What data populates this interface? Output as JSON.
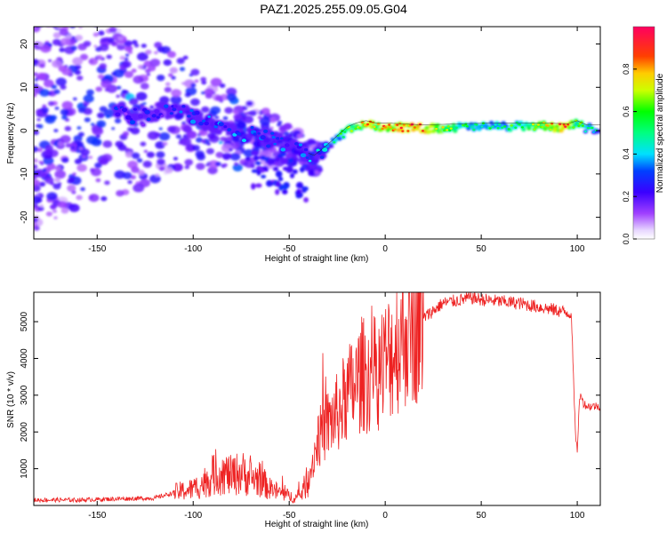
{
  "title": "PAZ1.2025.255.09.05.G04",
  "colors": {
    "snr_line": "#ee2222",
    "axis": "#000000",
    "grid": "#000000"
  },
  "chart_data": [
    {
      "type": "heatmap",
      "name": "spectrogram",
      "xlabel": "Height of straight line (km)",
      "ylabel": "Frequency (Hz)",
      "xlim": [
        -183,
        112
      ],
      "ylim": [
        -25,
        24
      ],
      "xticks": [
        -150,
        -100,
        -50,
        0,
        50,
        100
      ],
      "yticks": [
        -20,
        -10,
        0,
        10,
        20
      ],
      "colorbar": {
        "label": "Normalized spectral amplitude",
        "range": [
          0.0,
          1.0
        ],
        "ticks": [
          "0.0",
          "0.2",
          "0.4",
          "0.6",
          "0.8"
        ]
      },
      "ridge": {
        "x": [
          -183,
          -160,
          -140,
          -125,
          -115,
          -105,
          -95,
          -85,
          -75,
          -65,
          -55,
          -45,
          -40,
          -37,
          -34,
          -30,
          -25,
          -20,
          -15,
          -10,
          -5,
          0,
          20,
          40,
          60,
          80,
          95,
          100,
          105,
          112
        ],
        "y": [
          3,
          4,
          4,
          3,
          5,
          4,
          2,
          1,
          -0.5,
          -1.5,
          -2.5,
          -4,
          -6,
          -6.5,
          -5.5,
          -4,
          -2,
          0,
          1,
          1.5,
          1,
          1,
          0.5,
          0.8,
          1,
          1,
          0.8,
          1.5,
          0.5,
          0.5
        ],
        "amplitude": [
          0.1,
          0.15,
          0.2,
          0.25,
          0.25,
          0.3,
          0.3,
          0.3,
          0.3,
          0.3,
          0.3,
          0.3,
          0.3,
          0.35,
          0.35,
          0.4,
          0.5,
          0.6,
          0.7,
          0.8,
          0.75,
          0.85,
          0.9,
          0.55,
          0.5,
          0.7,
          0.9,
          0.6,
          0.5,
          0.4
        ]
      }
    },
    {
      "type": "line",
      "name": "snr",
      "xlabel": "Height of straight line (km)",
      "ylabel": "SNR (10 * v/v)",
      "xlim": [
        -183,
        112
      ],
      "ylim": [
        0,
        5800
      ],
      "xticks": [
        -150,
        -100,
        -50,
        0,
        50,
        100
      ],
      "yticks": [
        1000,
        2000,
        3000,
        4000,
        5000
      ],
      "series": [
        {
          "name": "SNR",
          "x": [
            -183,
            -160,
            -140,
            -120,
            -110,
            -100,
            -95,
            -90,
            -85,
            -80,
            -75,
            -70,
            -65,
            -60,
            -55,
            -50,
            -45,
            -40,
            -35,
            -30,
            -25,
            -20,
            -15,
            -12,
            -10,
            -5,
            0,
            5,
            10,
            15,
            20,
            25,
            30,
            35,
            40,
            45,
            50,
            60,
            70,
            80,
            90,
            95,
            97,
            98,
            99,
            100,
            101,
            102,
            103,
            105,
            108,
            112
          ],
          "y": [
            150,
            150,
            180,
            200,
            350,
            450,
            600,
            800,
            900,
            800,
            900,
            750,
            700,
            450,
            350,
            250,
            200,
            700,
            1800,
            2200,
            2500,
            3000,
            3300,
            3600,
            3500,
            3600,
            3900,
            4300,
            4700,
            4900,
            5100,
            5300,
            5500,
            5550,
            5600,
            5650,
            5600,
            5550,
            5500,
            5400,
            5300,
            5250,
            5200,
            3500,
            2000,
            1500,
            2700,
            3100,
            2800,
            2700,
            2700,
            2700
          ]
        }
      ]
    }
  ]
}
